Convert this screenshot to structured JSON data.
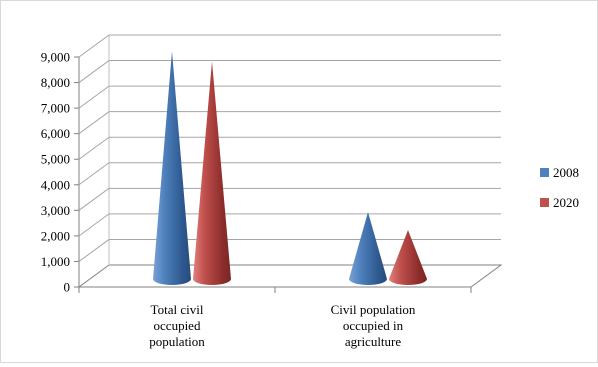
{
  "chart_data": {
    "type": "bar",
    "style": "3d-cone",
    "categories": [
      [
        "Total civil",
        "occupied",
        "population"
      ],
      [
        "Civil population",
        "occupied in",
        "agriculture"
      ]
    ],
    "series": [
      {
        "name": "2008",
        "color": "#4F81BD",
        "values": [
          8800,
          2500
        ]
      },
      {
        "name": "2020",
        "color": "#C0504D",
        "values": [
          8400,
          1800
        ]
      }
    ],
    "ylim": [
      0,
      9000
    ],
    "y_ticks": [
      "0",
      "1,000",
      "2,000",
      "3,000",
      "4,000",
      "5,000",
      "6,000",
      "7,000",
      "8,000",
      "9,000"
    ],
    "grid": true,
    "legend_position": "right",
    "title": "",
    "xlabel": "",
    "ylabel": ""
  }
}
